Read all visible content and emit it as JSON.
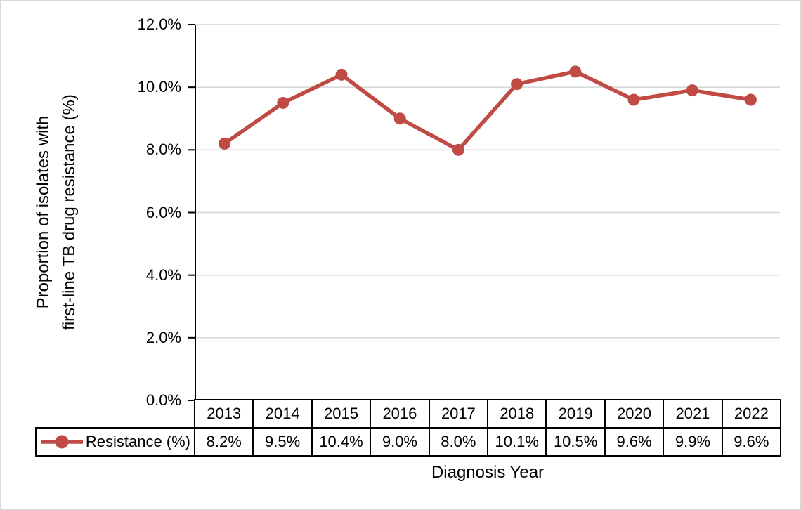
{
  "figure": {
    "background": "#ffffff",
    "frame_border_color": "#d7d9da",
    "text_color": "#000000"
  },
  "chart_data": {
    "type": "line",
    "title": "",
    "xlabel": "Diagnosis Year",
    "ylabel_lines": [
      "Proportion of isolates with",
      "first-line TB drug resistance (%)"
    ],
    "categories": [
      "2013",
      "2014",
      "2015",
      "2016",
      "2017",
      "2018",
      "2019",
      "2020",
      "2021",
      "2022"
    ],
    "series": [
      {
        "name": "Resistance (%)",
        "values": [
          8.2,
          9.5,
          10.4,
          9.0,
          8.0,
          10.1,
          10.5,
          9.6,
          9.9,
          9.6
        ],
        "value_labels": [
          "8.2%",
          "9.5%",
          "10.4%",
          "9.0%",
          "8.0%",
          "10.1%",
          "10.5%",
          "9.6%",
          "9.9%",
          "9.6%"
        ],
        "color": "#c04a44",
        "marker": "circle"
      }
    ],
    "ylim": [
      0,
      12
    ],
    "ytick_step": 2,
    "ytick_labels": [
      "0.0%",
      "2.0%",
      "4.0%",
      "6.0%",
      "8.0%",
      "10.0%",
      "12.0%"
    ],
    "grid": true,
    "gridline_color": "#d9d9d9",
    "axis_color": "#000000",
    "legend_position": "bottom-left-table-cell",
    "data_table_shown": true
  }
}
